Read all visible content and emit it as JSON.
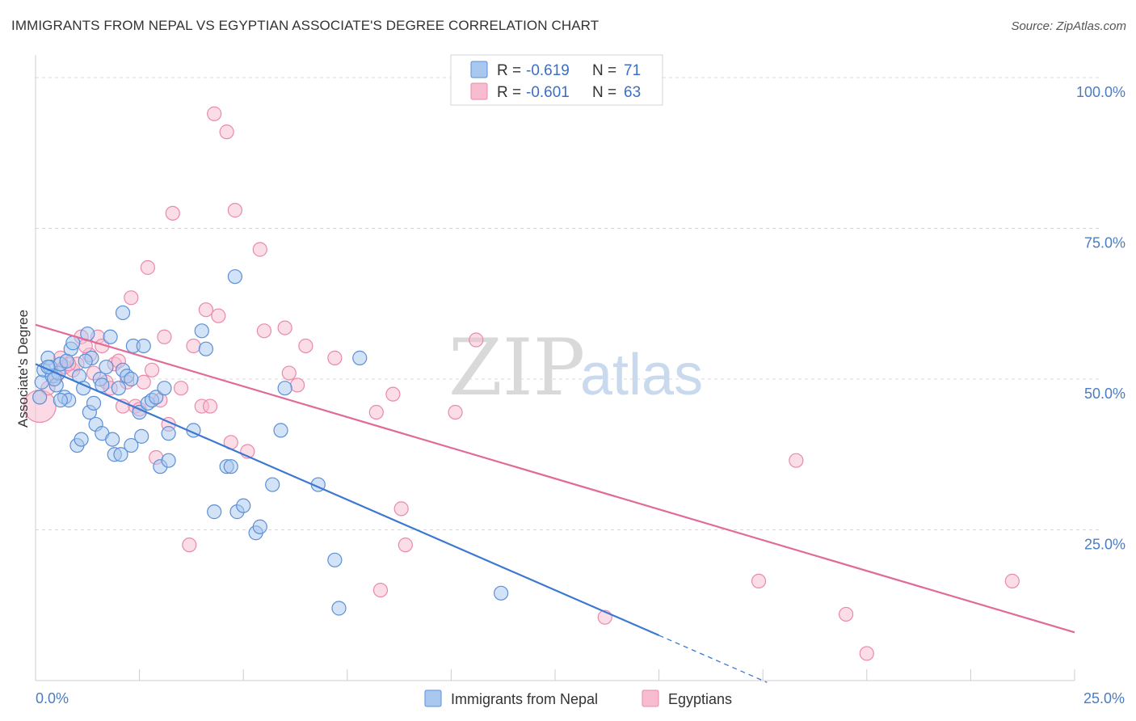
{
  "header": {
    "title": "IMMIGRANTS FROM NEPAL VS EGYPTIAN ASSOCIATE'S DEGREE CORRELATION CHART",
    "source": "Source: ZipAtlas.com"
  },
  "watermark": {
    "zip": "ZIP",
    "atlas": "atlas"
  },
  "legend": {
    "rows": [
      {
        "r_label": "R =",
        "r_value": "-0.619",
        "n_label": "N =",
        "n_value": "71"
      },
      {
        "r_label": "R =",
        "r_value": "-0.601",
        "n_label": "N =",
        "n_value": "63"
      }
    ]
  },
  "colors": {
    "nepal_fill": "#a8c8f0",
    "nepal_stroke": "#5b8fd6",
    "nepal_line": "#3b78d0",
    "egypt_fill": "#f7bcd0",
    "egypt_stroke": "#e98aab",
    "egypt_line": "#e06a98",
    "grid": "#d8d8d8",
    "axis": "#cccccc"
  },
  "chart_data": {
    "type": "scatter",
    "xlabel": "",
    "ylabel": "Associate's Degree",
    "xlim": [
      0,
      25
    ],
    "ylim": [
      0,
      100
    ],
    "x_tick_labels": {
      "min": "0.0%",
      "max": "25.0%"
    },
    "y_ticks": [
      {
        "value": 100,
        "label": "100.0%"
      },
      {
        "value": 75,
        "label": "75.0%"
      },
      {
        "value": 50,
        "label": "50.0%"
      },
      {
        "value": 25,
        "label": "25.0%"
      }
    ],
    "grid": true,
    "legend_position": "bottom-center",
    "series": [
      {
        "name": "Immigrants from Nepal",
        "trend": {
          "x0": 0,
          "y0": 52.5,
          "x1": 15.0,
          "y1": 7.5,
          "dash_to_x": 17.6
        },
        "points": [
          [
            0.1,
            47.0
          ],
          [
            0.15,
            49.5
          ],
          [
            0.2,
            51.5
          ],
          [
            0.3,
            53.5
          ],
          [
            0.35,
            52.0
          ],
          [
            0.4,
            50.5
          ],
          [
            0.5,
            49.0
          ],
          [
            0.55,
            51.0
          ],
          [
            0.6,
            52.5
          ],
          [
            0.7,
            47.0
          ],
          [
            0.75,
            53.0
          ],
          [
            0.8,
            46.5
          ],
          [
            0.85,
            55.0
          ],
          [
            0.9,
            56.0
          ],
          [
            1.0,
            39.0
          ],
          [
            1.05,
            50.5
          ],
          [
            1.1,
            40.0
          ],
          [
            1.15,
            48.5
          ],
          [
            1.25,
            57.5
          ],
          [
            1.3,
            44.5
          ],
          [
            1.35,
            53.5
          ],
          [
            1.4,
            46.0
          ],
          [
            1.45,
            42.5
          ],
          [
            1.55,
            50.0
          ],
          [
            1.6,
            41.0
          ],
          [
            1.7,
            52.0
          ],
          [
            1.8,
            57.0
          ],
          [
            1.85,
            40.0
          ],
          [
            1.9,
            37.5
          ],
          [
            2.05,
            37.5
          ],
          [
            2.1,
            51.5
          ],
          [
            2.2,
            50.5
          ],
          [
            2.3,
            39.0
          ],
          [
            2.35,
            55.5
          ],
          [
            2.5,
            44.5
          ],
          [
            2.55,
            40.5
          ],
          [
            2.6,
            55.5
          ],
          [
            2.7,
            46.0
          ],
          [
            2.8,
            46.5
          ],
          [
            2.9,
            47.0
          ],
          [
            3.0,
            35.5
          ],
          [
            3.1,
            48.5
          ],
          [
            3.2,
            41.0
          ],
          [
            3.8,
            41.5
          ],
          [
            4.0,
            58.0
          ],
          [
            4.1,
            55.0
          ],
          [
            4.3,
            28.0
          ],
          [
            4.6,
            35.5
          ],
          [
            4.7,
            35.5
          ],
          [
            4.8,
            67.0
          ],
          [
            4.85,
            28.0
          ],
          [
            5.0,
            29.0
          ],
          [
            5.3,
            24.5
          ],
          [
            5.4,
            25.5
          ],
          [
            5.7,
            32.5
          ],
          [
            5.9,
            41.5
          ],
          [
            6.0,
            48.5
          ],
          [
            6.8,
            32.5
          ],
          [
            7.2,
            20.0
          ],
          [
            7.3,
            12.0
          ],
          [
            7.8,
            53.5
          ],
          [
            11.2,
            14.5
          ],
          [
            2.1,
            61.0
          ],
          [
            1.6,
            49.0
          ],
          [
            0.3,
            52.0
          ],
          [
            0.45,
            50.0
          ],
          [
            0.6,
            46.5
          ],
          [
            1.2,
            53.0
          ],
          [
            2.0,
            48.5
          ],
          [
            3.2,
            36.5
          ],
          [
            2.3,
            50.0
          ]
        ]
      },
      {
        "name": "Egyptians",
        "trend": {
          "x0": 0,
          "y0": 59.0,
          "x1": 25.0,
          "y1": 8.0
        },
        "points": [
          [
            0.1,
            45.5
          ],
          [
            0.3,
            48.5
          ],
          [
            0.5,
            50.5
          ],
          [
            0.6,
            53.5
          ],
          [
            0.7,
            52.0
          ],
          [
            0.9,
            51.5
          ],
          [
            1.0,
            52.5
          ],
          [
            1.1,
            57.0
          ],
          [
            1.3,
            54.0
          ],
          [
            1.4,
            51.0
          ],
          [
            1.5,
            57.0
          ],
          [
            1.6,
            55.5
          ],
          [
            1.7,
            49.5
          ],
          [
            1.8,
            48.5
          ],
          [
            1.9,
            52.5
          ],
          [
            2.0,
            53.0
          ],
          [
            2.1,
            45.5
          ],
          [
            2.2,
            49.5
          ],
          [
            2.3,
            63.5
          ],
          [
            2.4,
            45.5
          ],
          [
            2.5,
            45.0
          ],
          [
            2.6,
            49.5
          ],
          [
            2.7,
            68.5
          ],
          [
            2.8,
            51.5
          ],
          [
            2.9,
            37.0
          ],
          [
            3.0,
            46.5
          ],
          [
            3.1,
            57.0
          ],
          [
            3.2,
            42.5
          ],
          [
            3.3,
            77.5
          ],
          [
            3.5,
            48.5
          ],
          [
            3.7,
            22.5
          ],
          [
            3.8,
            55.5
          ],
          [
            4.0,
            45.5
          ],
          [
            4.1,
            61.5
          ],
          [
            4.2,
            45.5
          ],
          [
            4.3,
            94.0
          ],
          [
            4.4,
            60.5
          ],
          [
            4.6,
            91.0
          ],
          [
            4.7,
            39.5
          ],
          [
            4.8,
            78.0
          ],
          [
            5.1,
            38.0
          ],
          [
            5.4,
            71.5
          ],
          [
            5.5,
            58.0
          ],
          [
            6.0,
            58.5
          ],
          [
            6.1,
            51.0
          ],
          [
            6.3,
            49.0
          ],
          [
            6.5,
            55.5
          ],
          [
            7.2,
            53.5
          ],
          [
            8.2,
            44.5
          ],
          [
            8.6,
            47.5
          ],
          [
            8.8,
            28.5
          ],
          [
            8.9,
            22.5
          ],
          [
            8.3,
            15.0
          ],
          [
            10.1,
            44.5
          ],
          [
            10.6,
            56.5
          ],
          [
            13.7,
            10.5
          ],
          [
            17.4,
            16.5
          ],
          [
            18.3,
            36.5
          ],
          [
            19.5,
            11.0
          ],
          [
            20.0,
            4.5
          ],
          [
            23.5,
            16.5
          ],
          [
            1.2,
            55.5
          ],
          [
            0.8,
            52.5
          ]
        ]
      }
    ]
  }
}
